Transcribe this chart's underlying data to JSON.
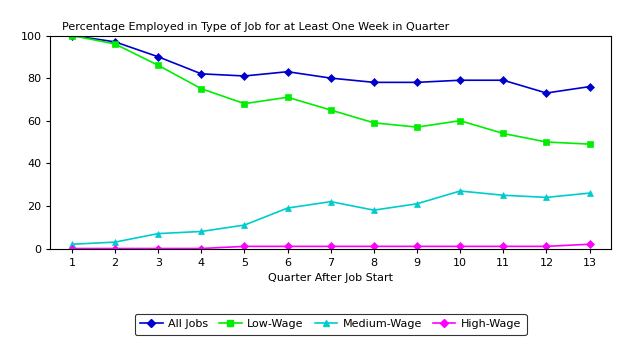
{
  "quarters": [
    1,
    2,
    3,
    4,
    5,
    6,
    7,
    8,
    9,
    10,
    11,
    12,
    13
  ],
  "all_jobs": [
    100,
    97,
    90,
    82,
    81,
    83,
    80,
    78,
    78,
    79,
    79,
    73,
    76
  ],
  "low_wage": [
    100,
    96,
    86,
    75,
    68,
    71,
    65,
    59,
    57,
    60,
    54,
    50,
    49
  ],
  "medium_wage": [
    2,
    3,
    7,
    8,
    11,
    19,
    22,
    18,
    21,
    27,
    25,
    24,
    26
  ],
  "high_wage": [
    0,
    0,
    0,
    0,
    1,
    1,
    1,
    1,
    1,
    1,
    1,
    1,
    2
  ],
  "all_jobs_color": "#0000CC",
  "low_wage_color": "#00EE00",
  "medium_wage_color": "#00CCCC",
  "high_wage_color": "#FF00FF",
  "title": "Percentage Employed in Type of Job for at Least One Week in Quarter",
  "xlabel": "Quarter After Job Start",
  "ylim": [
    0,
    100
  ],
  "xlim": [
    0.5,
    13.5
  ],
  "yticks": [
    0,
    20,
    40,
    60,
    80,
    100
  ],
  "xticks": [
    1,
    2,
    3,
    4,
    5,
    6,
    7,
    8,
    9,
    10,
    11,
    12,
    13
  ],
  "legend_labels": [
    "All Jobs",
    "Low-Wage",
    "Medium-Wage",
    "High-Wage"
  ],
  "title_fontsize": 8,
  "axis_label_fontsize": 8,
  "tick_fontsize": 8,
  "legend_fontsize": 8
}
